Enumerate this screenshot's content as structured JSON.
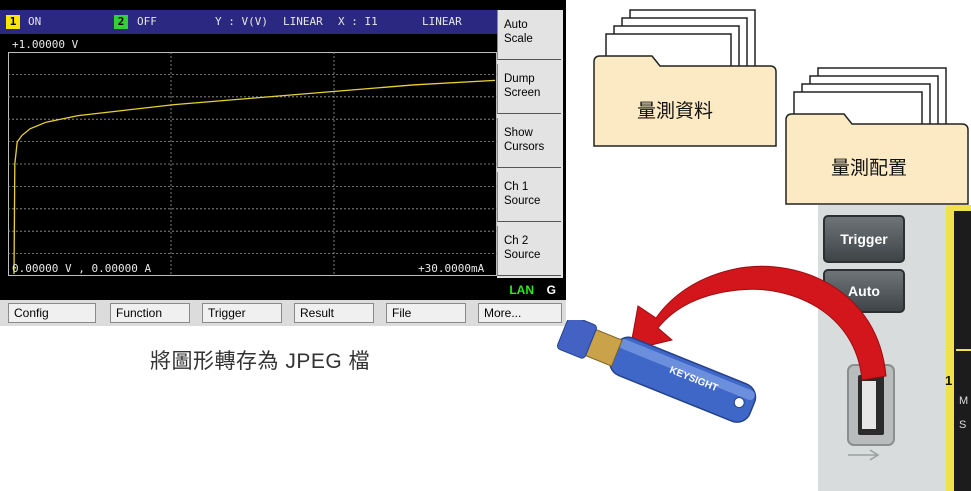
{
  "header": {
    "ch1_badge": "1",
    "ch1_state": "ON",
    "ch2_badge": "2",
    "ch2_state": "OFF",
    "y_axis": "Y : V(V)",
    "y_scale": "LINEAR",
    "x_axis": "X : I1",
    "x_scale": "LINEAR",
    "ch1_color": "#ffe600",
    "ch2_color": "#33d133"
  },
  "plot": {
    "y_top_label": "+1.00000 V",
    "origin_label": "0.00000 V , 0.00000 A",
    "x_right_label": "+30.0000mA",
    "trace_color": "#e8d230"
  },
  "chart_data": {
    "type": "line",
    "xlabel": "I1",
    "ylabel": "V(V)",
    "xlim": [
      0,
      30
    ],
    "ylim": [
      0,
      1
    ],
    "x": [
      0,
      0.05,
      0.2,
      0.5,
      1,
      2,
      4,
      7,
      10,
      15,
      20,
      25,
      30
    ],
    "y": [
      0,
      0.5,
      0.6,
      0.63,
      0.66,
      0.69,
      0.72,
      0.745,
      0.77,
      0.8,
      0.83,
      0.86,
      0.88
    ]
  },
  "softkeys": [
    {
      "label": "Auto\nScale"
    },
    {
      "label": "Dump\nScreen"
    },
    {
      "label": "Show\nCursors"
    },
    {
      "label": "Ch 1\nSource"
    },
    {
      "label": "Ch 2\nSource"
    }
  ],
  "status": {
    "lan": "LAN",
    "g": "G"
  },
  "menu": [
    "Config",
    "Function",
    "Trigger",
    "Result",
    "File",
    "More..."
  ],
  "caption": "將圖形轉存為 JPEG 檔",
  "folders": {
    "data_label": "量測資料",
    "config_label": "量測配置"
  },
  "panel": {
    "trigger": "Trigger",
    "auto": "Auto",
    "channel_number": "1",
    "side_text_1": "M",
    "side_text_2": "S"
  },
  "usb": {
    "brand": "KEYSIGHT"
  }
}
